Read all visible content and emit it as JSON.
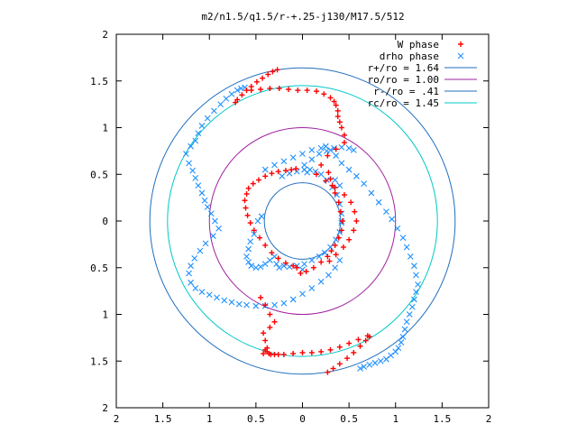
{
  "chart_data": {
    "type": "scatter",
    "title": "m2/n1.5/q1.5/r-+.25-j130/M17.5/512",
    "xlim": [
      -2,
      2
    ],
    "ylim": [
      -2,
      2
    ],
    "x_tick_values": [
      -2,
      -1.5,
      -1,
      -0.5,
      0,
      0.5,
      1,
      1.5,
      2
    ],
    "x_tick_labels": [
      "2",
      "1.5",
      "1",
      "0.5",
      "0",
      "0.5",
      "1",
      "1.5",
      "2"
    ],
    "y_tick_values": [
      2,
      1.5,
      1,
      0.5,
      0,
      -0.5,
      -1,
      -1.5,
      -2
    ],
    "y_tick_labels": [
      "2",
      "1.5",
      "1",
      "0.5",
      "0",
      "0.5",
      "1",
      "1.5",
      "2"
    ],
    "grid": false,
    "legend_position": "top-right",
    "series": [
      {
        "name": "W phase",
        "marker": "plus",
        "color": "#ff0000",
        "x": [
          -0.27,
          -0.32,
          -0.37,
          -0.43,
          -0.49,
          -0.55,
          -0.6,
          -0.65,
          -0.7,
          -0.72,
          -0.55,
          -0.45,
          -0.35,
          -0.25,
          -0.15,
          -0.05,
          0.05,
          0.15,
          0.23,
          0.3,
          0.34,
          0.36,
          0.38,
          0.38,
          0.4,
          0.42,
          0.45,
          0.45,
          0.36,
          0.27,
          0.2,
          0.15,
          0.25,
          0.35,
          0.45,
          0.52,
          0.56,
          0.58,
          0.55,
          0.5,
          0.44,
          0.36,
          0.29,
          0.28,
          0.3,
          0.32,
          0.35,
          0.39,
          0.41,
          0.43,
          0.42,
          0.39,
          0.35,
          0.31,
          0.27,
          0.2,
          0.12,
          0.04,
          -0.02,
          -0.06,
          -0.1,
          -0.18,
          -0.26,
          -0.33,
          -0.4,
          -0.46,
          -0.52,
          -0.56,
          -0.59,
          -0.61,
          -0.62,
          -0.6,
          -0.58,
          -0.53,
          -0.47,
          -0.4,
          -0.33,
          -0.26,
          -0.18,
          -0.12,
          -0.07,
          -0.45,
          -0.4,
          -0.35,
          -0.3,
          -0.35,
          -0.42,
          -0.4,
          -0.38,
          -0.42,
          -0.4,
          -0.38,
          -0.36,
          -0.34,
          -0.3,
          -0.26,
          -0.2,
          -0.1,
          0.0,
          0.1,
          0.2,
          0.3,
          0.4,
          0.5,
          0.6,
          0.7,
          0.27,
          0.33,
          0.4,
          0.48,
          0.55,
          0.62,
          0.68,
          0.72
        ],
        "y": [
          1.62,
          1.6,
          1.57,
          1.53,
          1.49,
          1.44,
          1.4,
          1.35,
          1.3,
          1.27,
          1.4,
          1.41,
          1.42,
          1.42,
          1.41,
          1.4,
          1.4,
          1.39,
          1.36,
          1.32,
          1.28,
          1.24,
          1.18,
          1.12,
          1.06,
          1.0,
          0.92,
          0.84,
          0.77,
          0.7,
          0.6,
          0.5,
          0.43,
          0.36,
          0.28,
          0.2,
          0.1,
          0.0,
          -0.1,
          -0.2,
          -0.28,
          -0.36,
          -0.43,
          0.52,
          0.45,
          0.38,
          0.3,
          0.2,
          0.1,
          0.0,
          -0.1,
          -0.18,
          -0.26,
          -0.32,
          -0.38,
          -0.44,
          -0.5,
          -0.54,
          -0.56,
          -0.5,
          -0.48,
          -0.45,
          -0.4,
          -0.34,
          -0.26,
          -0.18,
          -0.1,
          -0.02,
          0.06,
          0.14,
          0.22,
          0.29,
          0.35,
          0.4,
          0.44,
          0.48,
          0.51,
          0.53,
          0.54,
          0.55,
          0.56,
          -0.82,
          -0.9,
          -1.0,
          -1.08,
          -1.14,
          -1.2,
          -1.28,
          -1.36,
          -1.42,
          -1.38,
          -1.4,
          -1.42,
          -1.43,
          -1.43,
          -1.43,
          -1.43,
          -1.42,
          -1.41,
          -1.41,
          -1.4,
          -1.38,
          -1.35,
          -1.31,
          -1.27,
          -1.23,
          -1.62,
          -1.58,
          -1.53,
          -1.47,
          -1.41,
          -1.34,
          -1.28,
          -1.24
        ]
      },
      {
        "name": "drho phase",
        "marker": "cross",
        "color": "#1e90ff",
        "x": [
          -0.62,
          -0.66,
          -0.7,
          -0.76,
          -0.82,
          -0.88,
          -0.95,
          -1.02,
          -1.08,
          -1.12,
          -1.15,
          -1.2,
          -1.25,
          -1.22,
          -1.18,
          -1.15,
          -1.12,
          -1.08,
          -1.05,
          -1.02,
          -0.98,
          -0.94,
          -0.9,
          -0.96,
          -1.04,
          -1.1,
          -1.16,
          -1.2,
          -1.22,
          -1.2,
          -1.15,
          -1.08,
          -1.0,
          -0.92,
          -0.84,
          -0.76,
          -0.68,
          -0.6,
          -0.5,
          -0.4,
          -0.3,
          -0.2,
          -0.1,
          0.0,
          0.1,
          0.2,
          0.28,
          0.35,
          0.4,
          0.02,
          0.1,
          0.18,
          0.26,
          0.34,
          0.42,
          0.5,
          0.55,
          -0.4,
          -0.3,
          -0.2,
          -0.1,
          0.0,
          0.1,
          0.2,
          0.25,
          0.3,
          0.36,
          0.42,
          0.5,
          0.58,
          0.66,
          0.74,
          0.82,
          0.9,
          0.96,
          1.02,
          1.08,
          1.12,
          1.16,
          1.2,
          1.22,
          1.24,
          1.22,
          1.2,
          1.18,
          1.15,
          1.12,
          1.1,
          1.08,
          1.06,
          1.03,
          1.0,
          0.95,
          0.9,
          0.84,
          0.78,
          0.72,
          0.66,
          0.62,
          -0.48,
          -0.44,
          -0.52,
          -0.56,
          -0.58,
          -0.6,
          -0.58,
          -0.55,
          -0.5,
          -0.45,
          -0.4,
          -0.35,
          -0.3,
          -0.22,
          -0.14,
          -0.06,
          0.02,
          0.08,
          0.14,
          0.2,
          0.26,
          0.32,
          0.37,
          0.4,
          0.42,
          0.42,
          0.4,
          0.36,
          0.3,
          0.24,
          0.18,
          0.1,
          0.02,
          -0.06,
          -0.14,
          -0.2,
          -0.28,
          0.35,
          0.4,
          0.42,
          -0.25,
          0.0,
          0.05
        ],
        "y": [
          1.43,
          1.42,
          1.4,
          1.36,
          1.31,
          1.25,
          1.18,
          1.1,
          1.02,
          0.94,
          0.86,
          0.8,
          0.72,
          0.62,
          0.54,
          0.46,
          0.38,
          0.3,
          0.22,
          0.15,
          0.08,
          0.0,
          -0.08,
          -0.16,
          -0.24,
          -0.32,
          -0.4,
          -0.48,
          -0.56,
          -0.66,
          -0.72,
          -0.76,
          -0.79,
          -0.82,
          -0.85,
          -0.87,
          -0.89,
          -0.9,
          -0.91,
          -0.91,
          -0.9,
          -0.88,
          -0.84,
          -0.78,
          -0.72,
          -0.65,
          -0.58,
          -0.5,
          -0.42,
          0.6,
          0.66,
          0.72,
          0.75,
          0.78,
          0.79,
          0.78,
          0.76,
          0.55,
          0.6,
          0.64,
          0.68,
          0.72,
          0.76,
          0.78,
          0.8,
          0.76,
          0.7,
          0.62,
          0.55,
          0.48,
          0.4,
          0.3,
          0.2,
          0.1,
          0.02,
          -0.08,
          -0.18,
          -0.28,
          -0.38,
          -0.48,
          -0.58,
          -0.68,
          -0.76,
          -0.84,
          -0.92,
          -1.0,
          -1.08,
          -1.16,
          -1.24,
          -1.3,
          -1.36,
          -1.4,
          -1.44,
          -1.48,
          -1.5,
          -1.52,
          -1.54,
          -1.56,
          -1.58,
          0.0,
          0.05,
          -0.14,
          -0.22,
          -0.3,
          -0.38,
          -0.44,
          -0.48,
          -0.5,
          -0.49,
          -0.46,
          -0.42,
          -0.38,
          0.48,
          0.51,
          0.53,
          0.55,
          0.55,
          0.53,
          0.5,
          0.44,
          0.36,
          0.28,
          0.18,
          0.08,
          -0.02,
          -0.12,
          -0.2,
          -0.28,
          -0.34,
          -0.38,
          -0.42,
          -0.46,
          -0.48,
          -0.49,
          -0.48,
          -0.46,
          0.44,
          0.38,
          0.0,
          -0.5,
          -0.52,
          0.52
        ]
      }
    ],
    "circles": [
      {
        "name": "r+/ro = 1.64",
        "radius": 1.64,
        "color": "#1f6fbf"
      },
      {
        "name": "ro/ro = 1.00",
        "radius": 1.0,
        "color": "#a020a0"
      },
      {
        "name": "r-/ro = .41",
        "radius": 0.41,
        "color": "#1f6fbf"
      },
      {
        "name": "rc/ro = 1.45",
        "radius": 1.45,
        "color": "#00c8c8"
      }
    ]
  }
}
